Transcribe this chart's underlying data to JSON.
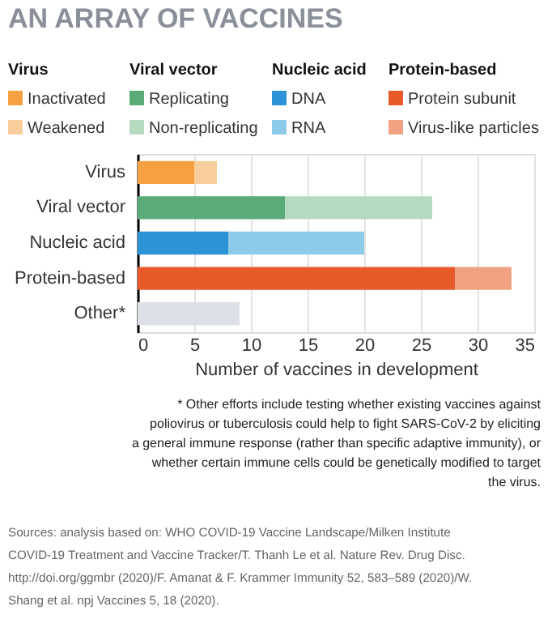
{
  "chart_data": {
    "type": "bar",
    "orientation": "horizontal",
    "stacked": true,
    "title": "AN ARRAY OF VACCINES",
    "categories": [
      "Virus",
      "Viral vector",
      "Nucleic acid",
      "Protein-based",
      "Other*"
    ],
    "series": [
      {
        "name": "Inactivated",
        "color": "#f5a142",
        "values": [
          5,
          null,
          null,
          null,
          null
        ]
      },
      {
        "name": "Weakened",
        "color": "#f8cf9c",
        "values": [
          2,
          null,
          null,
          null,
          null
        ]
      },
      {
        "name": "Replicating",
        "color": "#5aab78",
        "values": [
          null,
          13,
          null,
          null,
          null
        ]
      },
      {
        "name": "Non-replicating",
        "color": "#b4dbbf",
        "values": [
          null,
          13,
          null,
          null,
          null
        ]
      },
      {
        "name": "DNA",
        "color": "#2b93d6",
        "values": [
          null,
          null,
          8,
          null,
          null
        ]
      },
      {
        "name": "RNA",
        "color": "#8ecbe9",
        "values": [
          null,
          null,
          12,
          null,
          null
        ]
      },
      {
        "name": "Protein subunit",
        "color": "#e85a2a",
        "values": [
          null,
          null,
          null,
          28,
          null
        ]
      },
      {
        "name": "Virus-like particles",
        "color": "#f0a282",
        "values": [
          null,
          null,
          null,
          5,
          null
        ]
      },
      {
        "color": "#dde0e6",
        "values": [
          null,
          null,
          null,
          null,
          9
        ]
      }
    ],
    "xlabel": "Number of vaccines in development",
    "xlim": [
      0,
      35
    ],
    "xticks": [
      0,
      5,
      10,
      15,
      20,
      25,
      30,
      35
    ],
    "grid": "x",
    "legend": "top",
    "annotations": [
      "* Other efforts include testing whether existing vaccines against poliovirus or tuberculosis could help to fight SARS-CoV-2 by eliciting a general immune response (rather than specific adaptive immunity), or whether certain immune cells could be genetically modified to target the virus.",
      "Sources: analysis based on: WHO COVID-19 Vaccine Landscape/Milken Institute COVID-19 Treatment and Vaccine Tracker/T. Thanh Le et al. Nature Rev. Drug Disc. http://doi.org/ggmbr (2020)/F. Amanat & F. Krammer Immunity 52, 583–589 (2020)/W. Shang et al. npj Vaccines 5, 18 (2020)."
    ]
  }
}
